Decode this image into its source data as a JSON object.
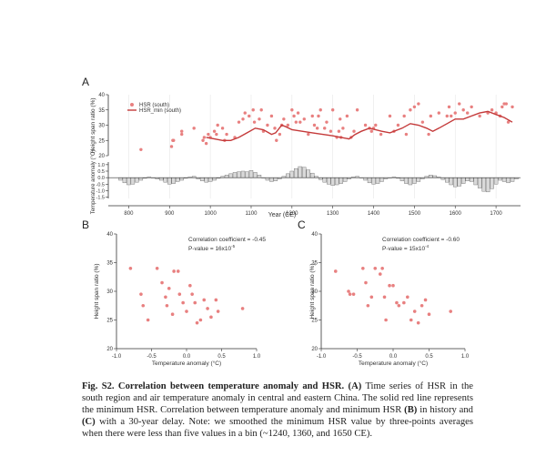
{
  "panels": {
    "a": {
      "label": "A"
    },
    "b": {
      "label": "B"
    },
    "c": {
      "label": "C"
    }
  },
  "chart_data": [
    {
      "id": "A-top",
      "type": "scatter",
      "ylabel": "Height span ratio (%)",
      "ylim": [
        20,
        40
      ],
      "yticks": [
        "20",
        "25",
        "30",
        "35",
        "40"
      ],
      "xlim": [
        750,
        1760
      ],
      "legend": [
        "HSR (south)",
        "HSR_min (south)"
      ],
      "legend_position": "top-left",
      "series": [
        {
          "name": "HSR (south)",
          "points": [
            [
              830,
              22
            ],
            [
              905,
              23
            ],
            [
              908,
              25
            ],
            [
              910,
              25
            ],
            [
              930,
              28
            ],
            [
              930,
              27
            ],
            [
              960,
              29
            ],
            [
              982,
              25
            ],
            [
              985,
              26
            ],
            [
              990,
              24
            ],
            [
              995,
              27
            ],
            [
              1000,
              26
            ],
            [
              1010,
              28
            ],
            [
              1015,
              27
            ],
            [
              1018,
              30
            ],
            [
              1030,
              29
            ],
            [
              1035,
              25
            ],
            [
              1040,
              27
            ],
            [
              1060,
              26
            ],
            [
              1070,
              31
            ],
            [
              1080,
              32
            ],
            [
              1085,
              34
            ],
            [
              1095,
              33
            ],
            [
              1105,
              35
            ],
            [
              1108,
              31
            ],
            [
              1120,
              32
            ],
            [
              1125,
              35
            ],
            [
              1130,
              28
            ],
            [
              1140,
              30
            ],
            [
              1150,
              33
            ],
            [
              1158,
              29
            ],
            [
              1162,
              25
            ],
            [
              1170,
              27
            ],
            [
              1175,
              30
            ],
            [
              1180,
              32
            ],
            [
              1190,
              30
            ],
            [
              1200,
              35
            ],
            [
              1205,
              33
            ],
            [
              1210,
              31
            ],
            [
              1215,
              34
            ],
            [
              1220,
              31
            ],
            [
              1230,
              32
            ],
            [
              1240,
              27
            ],
            [
              1250,
              33
            ],
            [
              1255,
              30
            ],
            [
              1262,
              29
            ],
            [
              1265,
              33
            ],
            [
              1270,
              35
            ],
            [
              1280,
              29
            ],
            [
              1285,
              31
            ],
            [
              1295,
              28
            ],
            [
              1300,
              35
            ],
            [
              1310,
              26
            ],
            [
              1315,
              28
            ],
            [
              1318,
              32
            ],
            [
              1320,
              26
            ],
            [
              1325,
              29
            ],
            [
              1335,
              33
            ],
            [
              1345,
              26
            ],
            [
              1352,
              28
            ],
            [
              1360,
              35
            ],
            [
              1380,
              30
            ],
            [
              1390,
              29
            ],
            [
              1395,
              28
            ],
            [
              1400,
              29
            ],
            [
              1405,
              30
            ],
            [
              1418,
              27
            ],
            [
              1440,
              33
            ],
            [
              1450,
              28
            ],
            [
              1460,
              30
            ],
            [
              1475,
              33
            ],
            [
              1480,
              27
            ],
            [
              1490,
              35
            ],
            [
              1500,
              36
            ],
            [
              1510,
              37
            ],
            [
              1520,
              31
            ],
            [
              1535,
              27
            ],
            [
              1540,
              33
            ],
            [
              1560,
              34
            ],
            [
              1580,
              33
            ],
            [
              1585,
              36
            ],
            [
              1590,
              33
            ],
            [
              1600,
              34
            ],
            [
              1610,
              37
            ],
            [
              1620,
              35
            ],
            [
              1630,
              34
            ],
            [
              1640,
              36
            ],
            [
              1660,
              33
            ],
            [
              1680,
              34
            ],
            [
              1690,
              35
            ],
            [
              1700,
              34
            ],
            [
              1710,
              33
            ],
            [
              1715,
              36
            ],
            [
              1720,
              37
            ],
            [
              1725,
              37
            ],
            [
              1730,
              31
            ],
            [
              1740,
              36
            ]
          ]
        },
        {
          "name": "HSR_min (south)",
          "points": [
            [
              990,
              26
            ],
            [
              1010,
              25.5
            ],
            [
              1030,
              25
            ],
            [
              1050,
              25
            ],
            [
              1070,
              26
            ],
            [
              1090,
              27.5
            ],
            [
              1110,
              29
            ],
            [
              1130,
              28.5
            ],
            [
              1150,
              27
            ],
            [
              1160,
              27.5
            ],
            [
              1175,
              30
            ],
            [
              1185,
              29.5
            ],
            [
              1200,
              28.5
            ],
            [
              1225,
              28
            ],
            [
              1250,
              27.5
            ],
            [
              1275,
              27
            ],
            [
              1300,
              26.5
            ],
            [
              1320,
              26
            ],
            [
              1340,
              25.5
            ],
            [
              1355,
              27
            ],
            [
              1370,
              28
            ],
            [
              1390,
              29
            ],
            [
              1420,
              28
            ],
            [
              1440,
              27.5
            ],
            [
              1470,
              29
            ],
            [
              1490,
              30.5
            ],
            [
              1510,
              30
            ],
            [
              1530,
              29
            ],
            [
              1545,
              28
            ],
            [
              1560,
              29
            ],
            [
              1580,
              30.5
            ],
            [
              1600,
              32
            ],
            [
              1620,
              32
            ],
            [
              1640,
              33
            ],
            [
              1660,
              34
            ],
            [
              1680,
              34.5
            ],
            [
              1700,
              33.5
            ],
            [
              1720,
              32.5
            ],
            [
              1740,
              31
            ]
          ]
        }
      ]
    },
    {
      "id": "A-bottom",
      "type": "bar",
      "ylabel": "Temperature anomaly (°C)",
      "xlabel": "Year (CE)",
      "ylim": [
        -1.6,
        1.2
      ],
      "yticks": [
        "1.0",
        "0.5",
        "0.0",
        "-0.5",
        "-1.0",
        "-1.5"
      ],
      "xticks": [
        "800",
        "900",
        "1000",
        "1100",
        "1200",
        "1300",
        "1400",
        "1500",
        "1600",
        "1700"
      ],
      "series": [
        {
          "name": "Temperature anomaly",
          "x_start": 780,
          "x_step": 10,
          "values": [
            -0.2,
            -0.4,
            -0.55,
            -0.5,
            -0.35,
            -0.2,
            -0.05,
            0.05,
            0.0,
            -0.1,
            -0.2,
            -0.35,
            -0.5,
            -0.45,
            -0.3,
            -0.2,
            -0.05,
            0.05,
            0.1,
            -0.1,
            -0.25,
            -0.35,
            -0.3,
            -0.2,
            -0.05,
            0.1,
            0.2,
            0.3,
            0.4,
            0.45,
            0.5,
            0.45,
            0.55,
            0.4,
            0.2,
            0.0,
            -0.2,
            -0.3,
            -0.25,
            -0.1,
            0.1,
            0.3,
            0.5,
            0.7,
            0.85,
            0.8,
            0.6,
            0.35,
            0.1,
            -0.15,
            -0.35,
            -0.5,
            -0.6,
            -0.55,
            -0.45,
            -0.3,
            -0.1,
            0.05,
            0.1,
            0.0,
            -0.2,
            -0.4,
            -0.5,
            -0.45,
            -0.3,
            -0.1,
            0.0,
            0.05,
            -0.05,
            -0.25,
            -0.45,
            -0.55,
            -0.45,
            -0.3,
            -0.1,
            0.1,
            0.2,
            0.15,
            0.05,
            -0.15,
            -0.35,
            -0.55,
            -0.7,
            -0.65,
            -0.45,
            -0.25,
            -0.3,
            -0.55,
            -0.8,
            -1.05,
            -1.1,
            -0.85,
            -0.5,
            -0.2,
            -0.3,
            -0.4,
            -0.3,
            -0.1
          ]
        }
      ]
    },
    {
      "id": "B",
      "type": "scatter",
      "xlabel": "Temperature anomaly (°C)",
      "ylabel": "Height span ratio (%)",
      "xlim": [
        -1.0,
        1.0
      ],
      "ylim": [
        20,
        40
      ],
      "xticks": [
        "-1.0",
        "-0.5",
        "0.0",
        "0.5",
        "1.0"
      ],
      "yticks": [
        "20",
        "25",
        "30",
        "35",
        "40"
      ],
      "annotation": {
        "r_text": "Correlation coefficient = -0.45",
        "p_text": "P-value = 16x10",
        "p_exp": "-5"
      },
      "points": [
        [
          -0.8,
          34
        ],
        [
          -0.65,
          29.5
        ],
        [
          -0.62,
          27.5
        ],
        [
          -0.55,
          25
        ],
        [
          -0.42,
          34
        ],
        [
          -0.35,
          31.5
        ],
        [
          -0.3,
          29
        ],
        [
          -0.28,
          27.5
        ],
        [
          -0.25,
          30.5
        ],
        [
          -0.2,
          26
        ],
        [
          -0.18,
          33.5
        ],
        [
          -0.12,
          33.5
        ],
        [
          -0.1,
          29.5
        ],
        [
          -0.05,
          28
        ],
        [
          0.0,
          26.5
        ],
        [
          0.05,
          31
        ],
        [
          0.08,
          29.5
        ],
        [
          0.12,
          28
        ],
        [
          0.15,
          24.5
        ],
        [
          0.2,
          25
        ],
        [
          0.25,
          28.5
        ],
        [
          0.3,
          27
        ],
        [
          0.35,
          25.5
        ],
        [
          0.42,
          28.5
        ],
        [
          0.45,
          26.5
        ],
        [
          0.8,
          27
        ]
      ]
    },
    {
      "id": "C",
      "type": "scatter",
      "xlabel": "Temperature anomaly (°C)",
      "ylabel": "Height span ratio (%)",
      "xlim": [
        -1.0,
        1.0
      ],
      "ylim": [
        20,
        40
      ],
      "xticks": [
        "-1.0",
        "-0.5",
        "0.0",
        "0.5",
        "1.0"
      ],
      "yticks": [
        "20",
        "25",
        "30",
        "35",
        "40"
      ],
      "annotation": {
        "r_text": "Correlation coefficient = -0.60",
        "p_text": "P-value = 15x10",
        "p_exp": "-4"
      },
      "points": [
        [
          -0.8,
          33.5
        ],
        [
          -0.62,
          30
        ],
        [
          -0.6,
          29.5
        ],
        [
          -0.55,
          29.5
        ],
        [
          -0.42,
          34
        ],
        [
          -0.38,
          31.5
        ],
        [
          -0.35,
          27.5
        ],
        [
          -0.3,
          29
        ],
        [
          -0.25,
          34
        ],
        [
          -0.18,
          33
        ],
        [
          -0.15,
          34
        ],
        [
          -0.12,
          29
        ],
        [
          -0.1,
          25
        ],
        [
          -0.05,
          31
        ],
        [
          0.0,
          31
        ],
        [
          0.05,
          28
        ],
        [
          0.08,
          27.5
        ],
        [
          0.15,
          28
        ],
        [
          0.2,
          29
        ],
        [
          0.25,
          25
        ],
        [
          0.3,
          26.5
        ],
        [
          0.35,
          24.5
        ],
        [
          0.4,
          27.5
        ],
        [
          0.45,
          28.5
        ],
        [
          0.5,
          26
        ],
        [
          0.8,
          26.5
        ]
      ]
    }
  ],
  "caption": {
    "fig_label": "Fig. S2.",
    "title": "Correlation between temperature anomaly and HSR.",
    "a_label": "(A)",
    "a_text": "Time series of HSR in the south region and air temperature anomaly in central and eastern China. The solid red line represents the minimum HSR. Correlation between temperature anomaly and minimum HSR",
    "b_label": "(B)",
    "b_text": "in history and",
    "c_label": "(C)",
    "c_text": "with a 30-year delay. Note: we smoothed the minimum HSR value by three-points averages when there were less than five values in a bin (~1240, 1360, and 1650 CE)."
  },
  "colors": {
    "point": "#e88080",
    "line": "#c43a3a",
    "bar_fill": "#d9d9d9",
    "axis": "#333333"
  }
}
